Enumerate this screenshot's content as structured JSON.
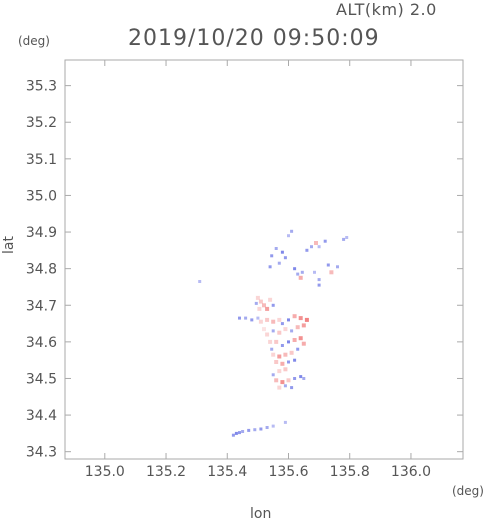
{
  "header": {
    "altitude_label": "ALT(km) 2.0",
    "timestamp": "2019/10/20 09:50:09"
  },
  "chart_data": {
    "type": "heatmap",
    "title": "2019/10/20 09:50:09",
    "subtitle": "ALT(km) 2.0",
    "xlabel": "lon",
    "ylabel": "lat",
    "x_unit": "(deg)",
    "y_unit": "(deg)",
    "xlim": [
      134.87,
      136.17
    ],
    "ylim": [
      34.28,
      35.37
    ],
    "xticks": [
      135.0,
      135.2,
      135.4,
      135.6,
      135.8,
      136.0
    ],
    "xtick_labels": [
      "135.0",
      "135.2",
      "135.4",
      "135.6",
      "135.8",
      "136.0"
    ],
    "yticks": [
      34.3,
      34.4,
      34.5,
      34.6,
      34.7,
      34.8,
      34.9,
      35.0,
      35.1,
      35.2,
      35.3
    ],
    "ytick_labels": [
      "34.3",
      "34.4",
      "34.5",
      "34.6",
      "34.7",
      "34.8",
      "34.9",
      "35.0",
      "35.1",
      "35.2",
      "35.3"
    ],
    "grid": false,
    "colors": {
      "negative": "#4a55e0",
      "positive": "#f07575",
      "frame": "#aaaaaa"
    },
    "echo_points": [
      {
        "lon": 135.61,
        "lat": 34.902,
        "v": -0.5
      },
      {
        "lon": 135.6,
        "lat": 34.89,
        "v": -0.4
      },
      {
        "lon": 135.545,
        "lat": 34.835,
        "v": -0.6
      },
      {
        "lon": 135.56,
        "lat": 34.855,
        "v": -0.5
      },
      {
        "lon": 135.58,
        "lat": 34.845,
        "v": -0.7
      },
      {
        "lon": 135.59,
        "lat": 34.83,
        "v": -0.6
      },
      {
        "lon": 135.57,
        "lat": 34.815,
        "v": -0.5
      },
      {
        "lon": 135.54,
        "lat": 34.805,
        "v": -0.6
      },
      {
        "lon": 135.62,
        "lat": 34.8,
        "v": -0.7
      },
      {
        "lon": 135.63,
        "lat": 34.785,
        "v": -0.5
      },
      {
        "lon": 135.64,
        "lat": 34.775,
        "v": 0.6
      },
      {
        "lon": 135.645,
        "lat": 34.79,
        "v": -0.5
      },
      {
        "lon": 135.66,
        "lat": 34.85,
        "v": -0.6
      },
      {
        "lon": 135.675,
        "lat": 34.86,
        "v": -0.5
      },
      {
        "lon": 135.69,
        "lat": 34.87,
        "v": 0.5
      },
      {
        "lon": 135.7,
        "lat": 34.86,
        "v": -0.4
      },
      {
        "lon": 135.72,
        "lat": 34.875,
        "v": -0.6
      },
      {
        "lon": 135.78,
        "lat": 34.88,
        "v": -0.5
      },
      {
        "lon": 135.79,
        "lat": 34.885,
        "v": -0.4
      },
      {
        "lon": 135.73,
        "lat": 34.81,
        "v": -0.6
      },
      {
        "lon": 135.74,
        "lat": 34.79,
        "v": 0.5
      },
      {
        "lon": 135.76,
        "lat": 34.805,
        "v": -0.5
      },
      {
        "lon": 135.685,
        "lat": 34.79,
        "v": -0.4
      },
      {
        "lon": 135.7,
        "lat": 34.77,
        "v": -0.5
      },
      {
        "lon": 135.7,
        "lat": 34.755,
        "v": -0.6
      },
      {
        "lon": 135.31,
        "lat": 34.765,
        "v": -0.4
      },
      {
        "lon": 135.5,
        "lat": 34.72,
        "v": 0.3
      },
      {
        "lon": 135.51,
        "lat": 34.71,
        "v": 0.4
      },
      {
        "lon": 135.52,
        "lat": 34.7,
        "v": 0.5
      },
      {
        "lon": 135.53,
        "lat": 34.69,
        "v": 0.7
      },
      {
        "lon": 135.505,
        "lat": 34.69,
        "v": 0.3
      },
      {
        "lon": 135.54,
        "lat": 34.715,
        "v": 0.3
      },
      {
        "lon": 135.55,
        "lat": 34.7,
        "v": -0.6
      },
      {
        "lon": 135.495,
        "lat": 34.705,
        "v": -0.5
      },
      {
        "lon": 135.44,
        "lat": 34.665,
        "v": -0.6
      },
      {
        "lon": 135.46,
        "lat": 34.665,
        "v": -0.5
      },
      {
        "lon": 135.48,
        "lat": 34.66,
        "v": -0.6
      },
      {
        "lon": 135.5,
        "lat": 34.665,
        "v": -0.4
      },
      {
        "lon": 135.51,
        "lat": 34.655,
        "v": 0.3
      },
      {
        "lon": 135.53,
        "lat": 34.66,
        "v": 0.4
      },
      {
        "lon": 135.55,
        "lat": 34.655,
        "v": 0.5
      },
      {
        "lon": 135.57,
        "lat": 34.66,
        "v": 0.3
      },
      {
        "lon": 135.58,
        "lat": 34.65,
        "v": -0.6
      },
      {
        "lon": 135.6,
        "lat": 34.66,
        "v": -0.7
      },
      {
        "lon": 135.62,
        "lat": 34.67,
        "v": 0.6
      },
      {
        "lon": 135.64,
        "lat": 34.665,
        "v": 0.8
      },
      {
        "lon": 135.66,
        "lat": 34.66,
        "v": 0.9
      },
      {
        "lon": 135.65,
        "lat": 34.645,
        "v": 0.7
      },
      {
        "lon": 135.63,
        "lat": 34.64,
        "v": 0.5
      },
      {
        "lon": 135.61,
        "lat": 34.63,
        "v": -0.5
      },
      {
        "lon": 135.59,
        "lat": 34.635,
        "v": 0.3
      },
      {
        "lon": 135.57,
        "lat": 34.625,
        "v": 0.4
      },
      {
        "lon": 135.55,
        "lat": 34.63,
        "v": -0.5
      },
      {
        "lon": 135.53,
        "lat": 34.62,
        "v": 0.3
      },
      {
        "lon": 135.52,
        "lat": 34.635,
        "v": 0.2
      },
      {
        "lon": 135.54,
        "lat": 34.6,
        "v": 0.3
      },
      {
        "lon": 135.56,
        "lat": 34.6,
        "v": 0.4
      },
      {
        "lon": 135.58,
        "lat": 34.59,
        "v": -0.6
      },
      {
        "lon": 135.6,
        "lat": 34.6,
        "v": -0.7
      },
      {
        "lon": 135.62,
        "lat": 34.605,
        "v": 0.6
      },
      {
        "lon": 135.64,
        "lat": 34.61,
        "v": 0.8
      },
      {
        "lon": 135.65,
        "lat": 34.595,
        "v": 0.6
      },
      {
        "lon": 135.63,
        "lat": 34.58,
        "v": -0.6
      },
      {
        "lon": 135.61,
        "lat": 34.57,
        "v": 0.4
      },
      {
        "lon": 135.59,
        "lat": 34.565,
        "v": 0.5
      },
      {
        "lon": 135.57,
        "lat": 34.56,
        "v": 0.7
      },
      {
        "lon": 135.55,
        "lat": 34.565,
        "v": 0.3
      },
      {
        "lon": 135.545,
        "lat": 34.58,
        "v": -0.5
      },
      {
        "lon": 135.56,
        "lat": 34.545,
        "v": 0.4
      },
      {
        "lon": 135.58,
        "lat": 34.54,
        "v": 0.6
      },
      {
        "lon": 135.6,
        "lat": 34.545,
        "v": -0.6
      },
      {
        "lon": 135.62,
        "lat": 34.55,
        "v": -0.7
      },
      {
        "lon": 135.59,
        "lat": 34.525,
        "v": 0.4
      },
      {
        "lon": 135.57,
        "lat": 34.52,
        "v": 0.3
      },
      {
        "lon": 135.55,
        "lat": 34.51,
        "v": -0.5
      },
      {
        "lon": 135.56,
        "lat": 34.495,
        "v": 0.5
      },
      {
        "lon": 135.58,
        "lat": 34.49,
        "v": 0.8
      },
      {
        "lon": 135.6,
        "lat": 34.495,
        "v": 0.4
      },
      {
        "lon": 135.62,
        "lat": 34.5,
        "v": -0.6
      },
      {
        "lon": 135.64,
        "lat": 34.505,
        "v": -0.7
      },
      {
        "lon": 135.65,
        "lat": 34.5,
        "v": -0.5
      },
      {
        "lon": 135.59,
        "lat": 34.48,
        "v": -0.5
      },
      {
        "lon": 135.61,
        "lat": 34.475,
        "v": -0.6
      },
      {
        "lon": 135.57,
        "lat": 34.475,
        "v": 0.3
      },
      {
        "lon": 135.42,
        "lat": 34.345,
        "v": -0.6
      },
      {
        "lon": 135.43,
        "lat": 34.35,
        "v": -0.7
      },
      {
        "lon": 135.44,
        "lat": 34.352,
        "v": -0.6
      },
      {
        "lon": 135.45,
        "lat": 34.355,
        "v": -0.5
      },
      {
        "lon": 135.47,
        "lat": 34.358,
        "v": -0.6
      },
      {
        "lon": 135.49,
        "lat": 34.36,
        "v": -0.5
      },
      {
        "lon": 135.51,
        "lat": 34.362,
        "v": -0.6
      },
      {
        "lon": 135.53,
        "lat": 34.366,
        "v": -0.5
      },
      {
        "lon": 135.55,
        "lat": 34.37,
        "v": -0.4
      },
      {
        "lon": 135.59,
        "lat": 34.38,
        "v": -0.4
      }
    ]
  }
}
